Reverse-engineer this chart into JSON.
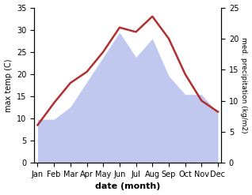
{
  "months": [
    "Jan",
    "Feb",
    "Mar",
    "Apr",
    "May",
    "Jun",
    "Jul",
    "Aug",
    "Sep",
    "Oct",
    "Nov",
    "Dec"
  ],
  "temperature": [
    8.5,
    13.5,
    18.0,
    20.5,
    25.0,
    30.5,
    29.5,
    33.0,
    28.0,
    20.0,
    14.0,
    11.5
  ],
  "precipitation": [
    7.0,
    7.0,
    9.0,
    13.0,
    17.0,
    21.0,
    17.0,
    20.0,
    14.0,
    11.0,
    11.0,
    8.0
  ],
  "temp_color": "#b03030",
  "precip_fill_color": "#c0c8f0",
  "left_ylim": [
    0,
    35
  ],
  "right_ylim": [
    0,
    25
  ],
  "left_yticks": [
    0,
    5,
    10,
    15,
    20,
    25,
    30,
    35
  ],
  "right_yticks": [
    0,
    5,
    10,
    15,
    20,
    25
  ],
  "xlabel": "date (month)",
  "ylabel_left": "max temp (C)",
  "ylabel_right": "med. precipitation (kg/m2)",
  "fig_width": 3.18,
  "fig_height": 2.47,
  "dpi": 100
}
